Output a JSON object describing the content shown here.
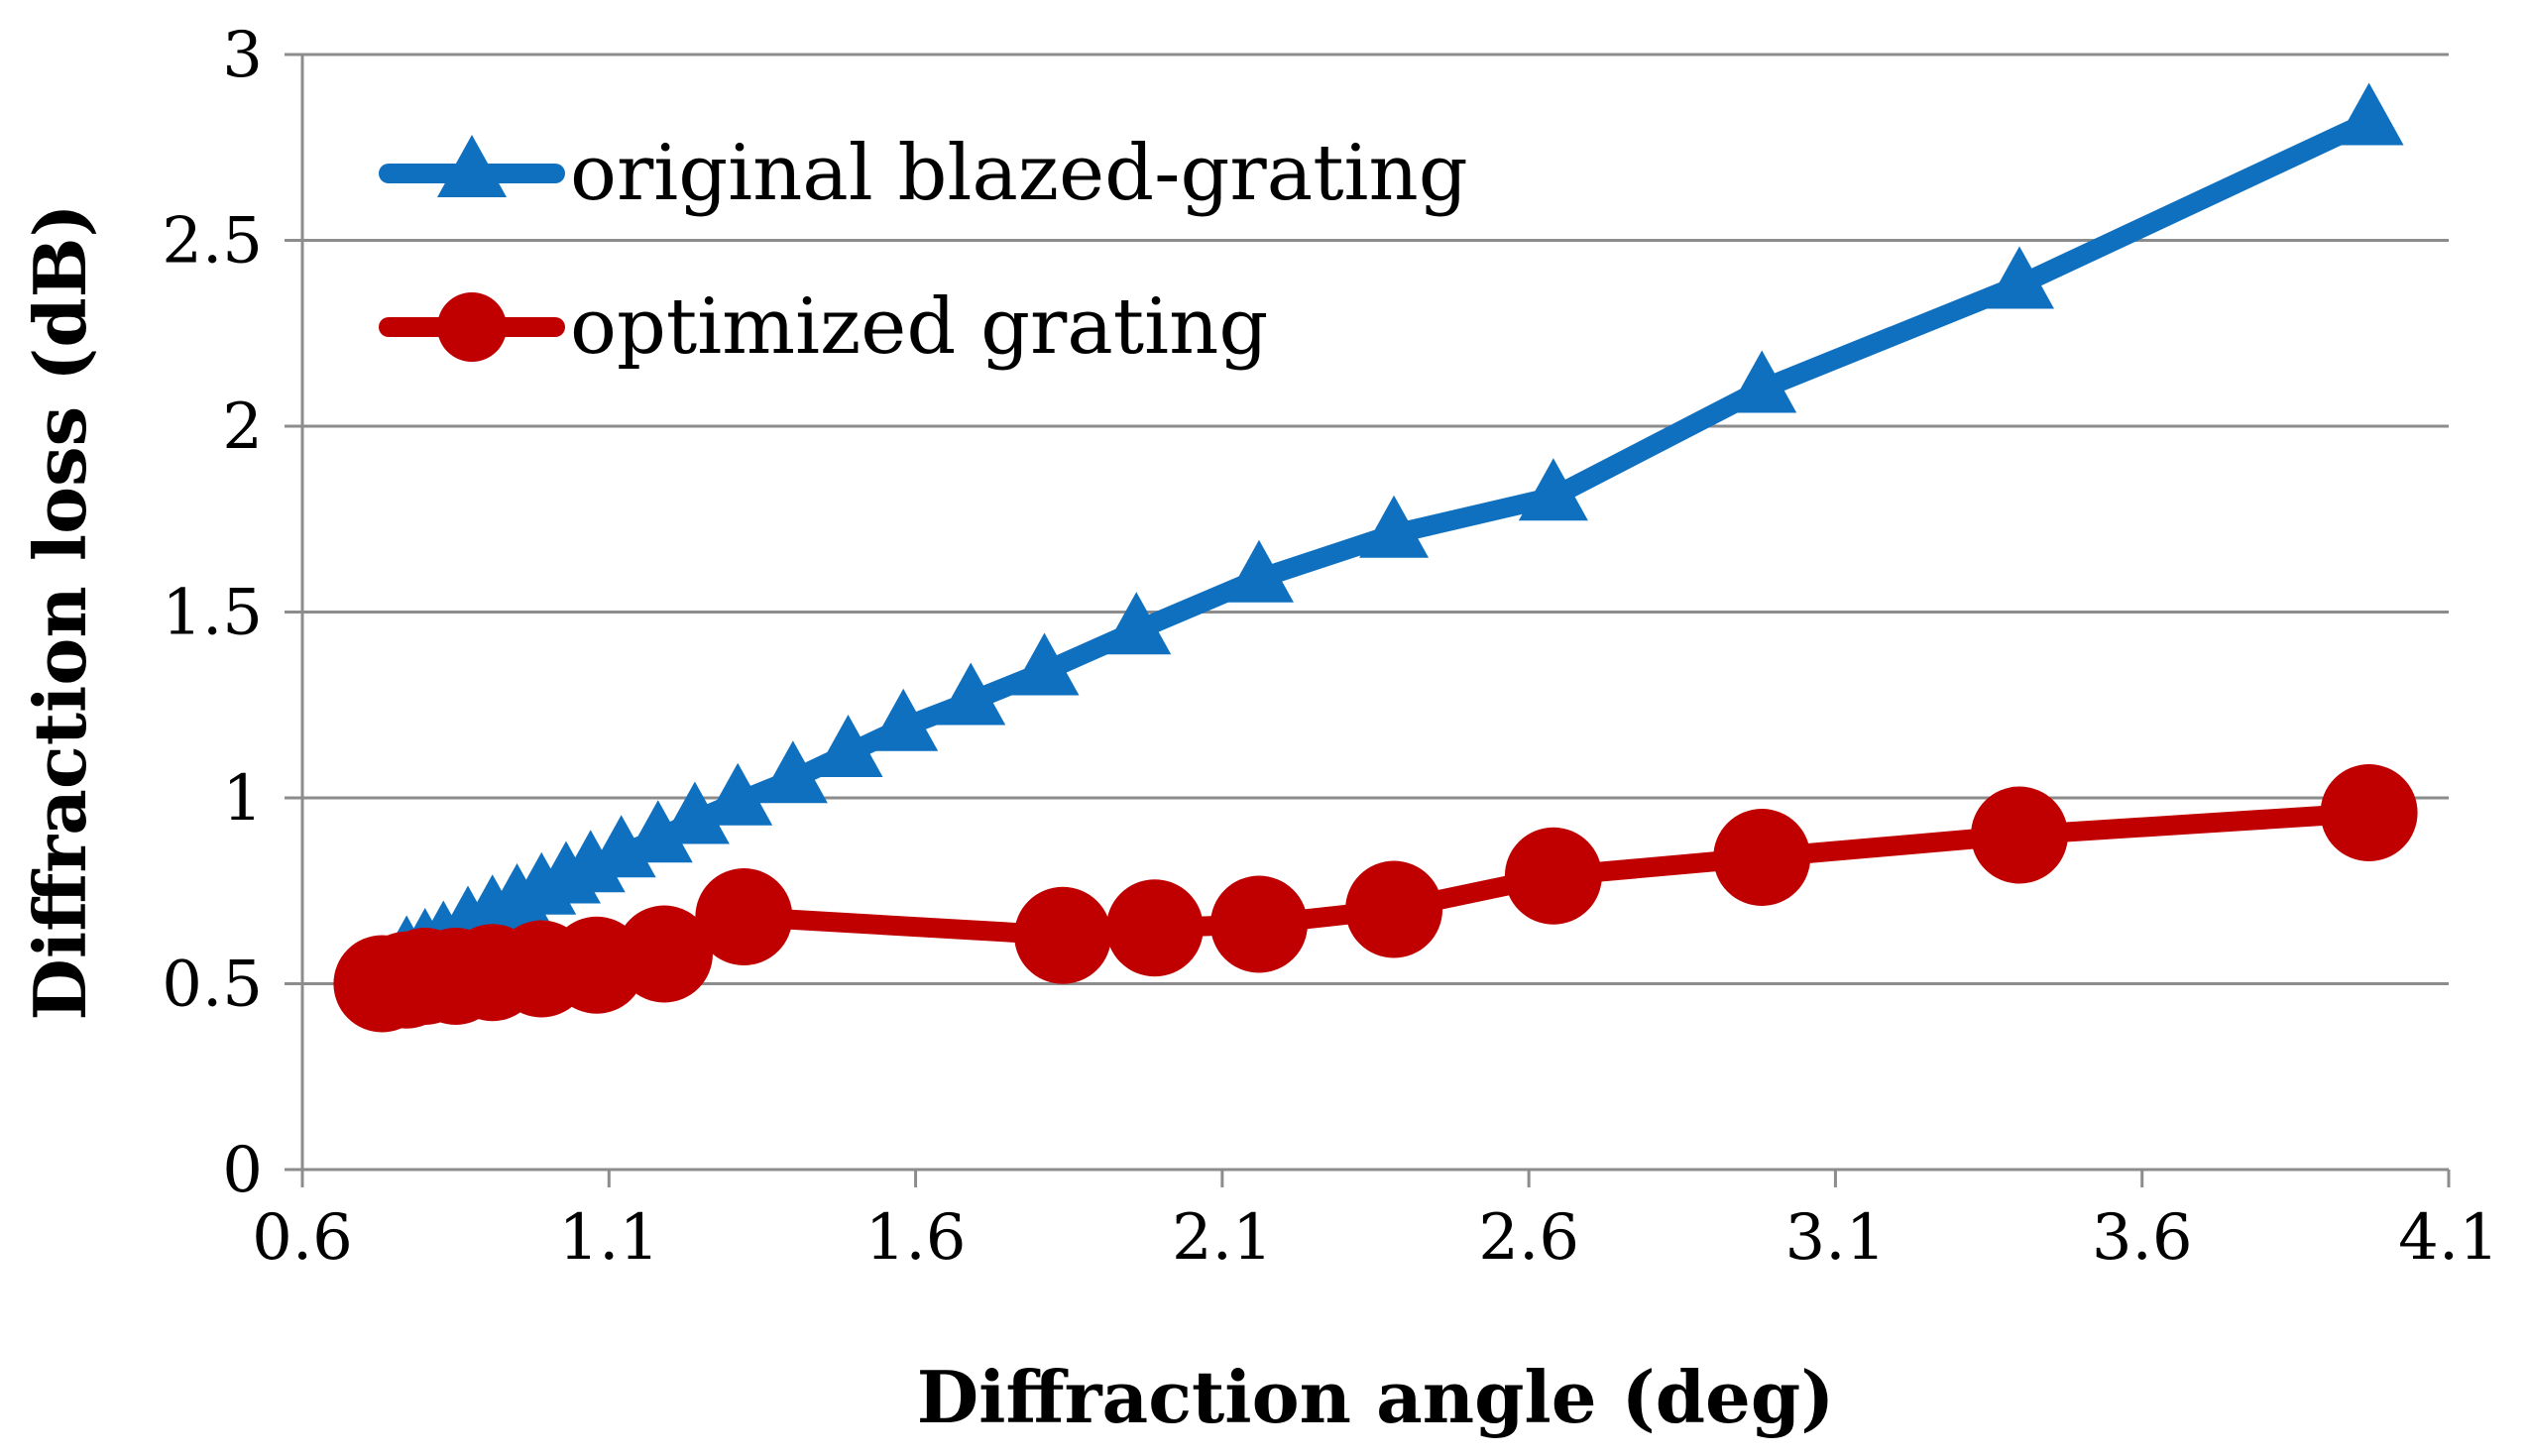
{
  "chart_data": {
    "type": "line",
    "title": "",
    "xlabel": "Diffraction angle (deg)",
    "ylabel": "Diffraction loss (dB)",
    "xlim": [
      0.6,
      4.1
    ],
    "ylim": [
      0,
      3
    ],
    "xticks": [
      0.6,
      1.1,
      1.6,
      2.1,
      2.6,
      3.1,
      3.6,
      4.1
    ],
    "xtick_labels": [
      "0.6",
      "1.1",
      "1.6",
      "2.1",
      "2.6",
      "3.1",
      "3.6",
      "4.1"
    ],
    "yticks": [
      0,
      0.5,
      1,
      1.5,
      2,
      2.5,
      3
    ],
    "ytick_labels": [
      "0",
      "0.5",
      "1",
      "1.5",
      "2",
      "2.5",
      "3"
    ],
    "grid": "horizontal",
    "legend_position": "top-left",
    "series": [
      {
        "name": "original blazed-grating",
        "color": "#1070C0",
        "marker": "triangle",
        "x": [
          0.73,
          0.77,
          0.8,
          0.83,
          0.87,
          0.91,
          0.95,
          0.99,
          1.03,
          1.07,
          1.12,
          1.18,
          1.24,
          1.31,
          1.4,
          1.49,
          1.58,
          1.69,
          1.81,
          1.96,
          2.16,
          2.38,
          2.64,
          2.98,
          3.4,
          3.97
        ],
        "y": [
          0.5,
          0.58,
          0.6,
          0.62,
          0.66,
          0.69,
          0.72,
          0.75,
          0.78,
          0.81,
          0.85,
          0.89,
          0.94,
          0.99,
          1.05,
          1.12,
          1.19,
          1.26,
          1.34,
          1.45,
          1.59,
          1.71,
          1.81,
          2.1,
          2.38,
          2.82
        ]
      },
      {
        "name": "optimized grating",
        "color": "#C00000",
        "marker": "circle",
        "x": [
          0.73,
          0.77,
          0.8,
          0.85,
          0.91,
          0.99,
          1.08,
          1.19,
          1.32,
          1.84,
          1.99,
          2.16,
          2.38,
          2.64,
          2.98,
          3.4,
          3.97
        ],
        "y": [
          0.5,
          0.51,
          0.52,
          0.52,
          0.53,
          0.54,
          0.55,
          0.58,
          0.68,
          0.63,
          0.65,
          0.66,
          0.7,
          0.79,
          0.84,
          0.9,
          0.96
        ]
      }
    ]
  }
}
